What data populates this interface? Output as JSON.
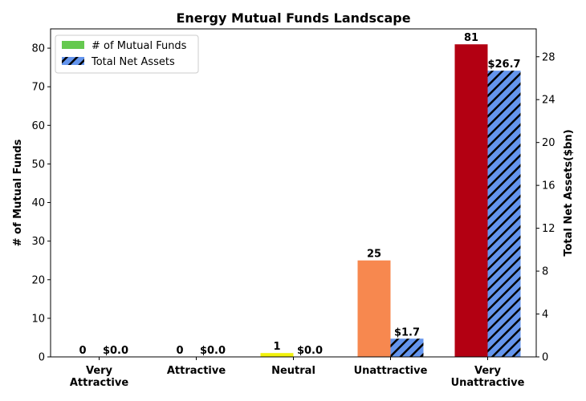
{
  "chart_data": {
    "type": "bar",
    "title": "Energy Mutual Funds Landscape",
    "categories": [
      [
        "Very",
        "Attractive"
      ],
      [
        "Attractive"
      ],
      [
        "Neutral"
      ],
      [
        "Unattractive"
      ],
      [
        "Very",
        "Unattractive"
      ]
    ],
    "series": [
      {
        "name": "# of Mutual Funds",
        "axis": "left",
        "values": [
          0,
          0,
          1,
          25,
          81
        ],
        "labels": [
          "0",
          "0",
          "1",
          "25",
          "81"
        ],
        "bar_colors": [
          "#2ca02c",
          "#65c94f",
          "#f2f20d",
          "#f7884f",
          "#b30012"
        ],
        "legend_color": "#65c94f"
      },
      {
        "name": "Total Net Assets",
        "axis": "right",
        "values": [
          0.0,
          0.0,
          0.0,
          1.7,
          26.7
        ],
        "labels": [
          "$0.0",
          "$0.0",
          "$0.0",
          "$1.7",
          "$26.7"
        ],
        "color": "#6495ed",
        "hatch": "diagonal"
      }
    ],
    "ylabel": "# of Mutual Funds",
    "ylabel_right": "Total Net Assets($bn)",
    "ylim": [
      0,
      85
    ],
    "ylim_right": [
      0,
      30.6
    ],
    "yticks": [
      0,
      10,
      20,
      30,
      40,
      50,
      60,
      70,
      80
    ],
    "yticks_right": [
      0,
      4,
      8,
      12,
      16,
      20,
      24,
      28
    ],
    "legend_position": "top-left",
    "grid": false
  }
}
